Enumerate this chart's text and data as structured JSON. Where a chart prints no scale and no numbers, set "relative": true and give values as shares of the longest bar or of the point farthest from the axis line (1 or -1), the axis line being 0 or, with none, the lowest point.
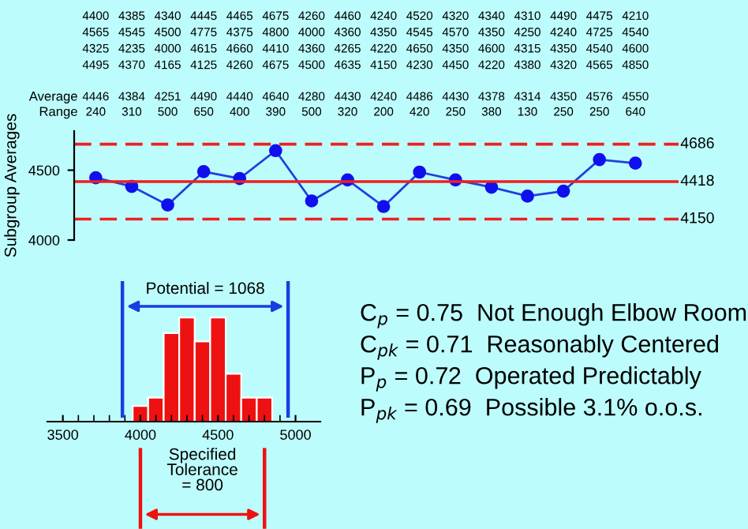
{
  "chart_data": [
    {
      "type": "line",
      "ylabel": "Subgroup Averages",
      "categories": [
        null,
        null,
        null,
        null,
        null,
        null,
        null,
        null,
        null,
        null,
        null,
        null,
        null,
        null,
        null,
        null
      ],
      "series": [
        {
          "color": "#2040e0",
          "values": [
            4446,
            4384,
            4251,
            4490,
            4440,
            4640,
            4280,
            4430,
            4240,
            4486,
            4430,
            4378,
            4314,
            4350,
            4576,
            4550
          ]
        }
      ],
      "marker": "circle",
      "line_style": "solid",
      "data_labels": true,
      "ylim": [
        4000,
        4780
      ],
      "yticks": [
        4000,
        4500
      ],
      "grid": false,
      "legend": false,
      "ref_lines": [
        {
          "axis": "y",
          "value": 4686,
          "label": "4686",
          "color": "#ee2020",
          "line_style": "dashed"
        },
        {
          "axis": "y",
          "value": 4418,
          "label": "4418",
          "color": "#ee2020",
          "line_style": "solid"
        },
        {
          "axis": "y",
          "value": 4150,
          "label": "4150",
          "color": "#ee2020",
          "line_style": "dashed"
        }
      ],
      "annotations": [
        "4400 4385 4340 4445 4465 4675 4260 4460 4240 4520 4320 4340 4310 4490 4475 4210",
        "4565 4545 4500 4775 4375 4800 4000 4360 4350 4545 4570 4350 4250 4240 4725 4540",
        "4325 4235 4000 4615 4660 4410 4360 4265 4220 4650 4350 4600 4315 4350 4540 4600",
        "4495 4370 4165 4125 4260 4675 4500 4635 4150 4230 4450 4220 4380 4320 4565 4850",
        "Average",
        "Range",
        "240 310 500 650 400 390 500 320 200 420 250 380 130 250 250 640"
      ]
    },
    {
      "type": "bar",
      "relative": true,
      "x": [
        4000,
        4100,
        4200,
        4300,
        4400,
        4500,
        4600,
        4700,
        4800
      ],
      "values": [
        0.15,
        0.23,
        0.85,
        1,
        0.77,
        1,
        0.46,
        0.23,
        0.23
      ],
      "color": "#ee1111",
      "xlim": [
        3400,
        5160
      ],
      "xticks": [
        3500,
        4000,
        4500,
        5000
      ],
      "tick_labels": "x",
      "grid": false,
      "legend": false,
      "ref_lines": [
        {
          "axis": "x",
          "value": 3884,
          "color": "#1a3ee0"
        },
        {
          "axis": "x",
          "value": 4952,
          "color": "#1a3ee0"
        }
      ],
      "annotations": [
        "Potential = 1068",
        "Specified\nTolerance\n= 800",
        "C$_{p}$ = 0.75  Not Enough Elbow Room",
        "C$_{pk}$ = 0.71  Reasonably Centered",
        "P$_{p}$ = 0.72  Operated Predictably",
        "P$_{pk}$ = 0.69  Possible 3.1% o.o.s."
      ]
    }
  ]
}
